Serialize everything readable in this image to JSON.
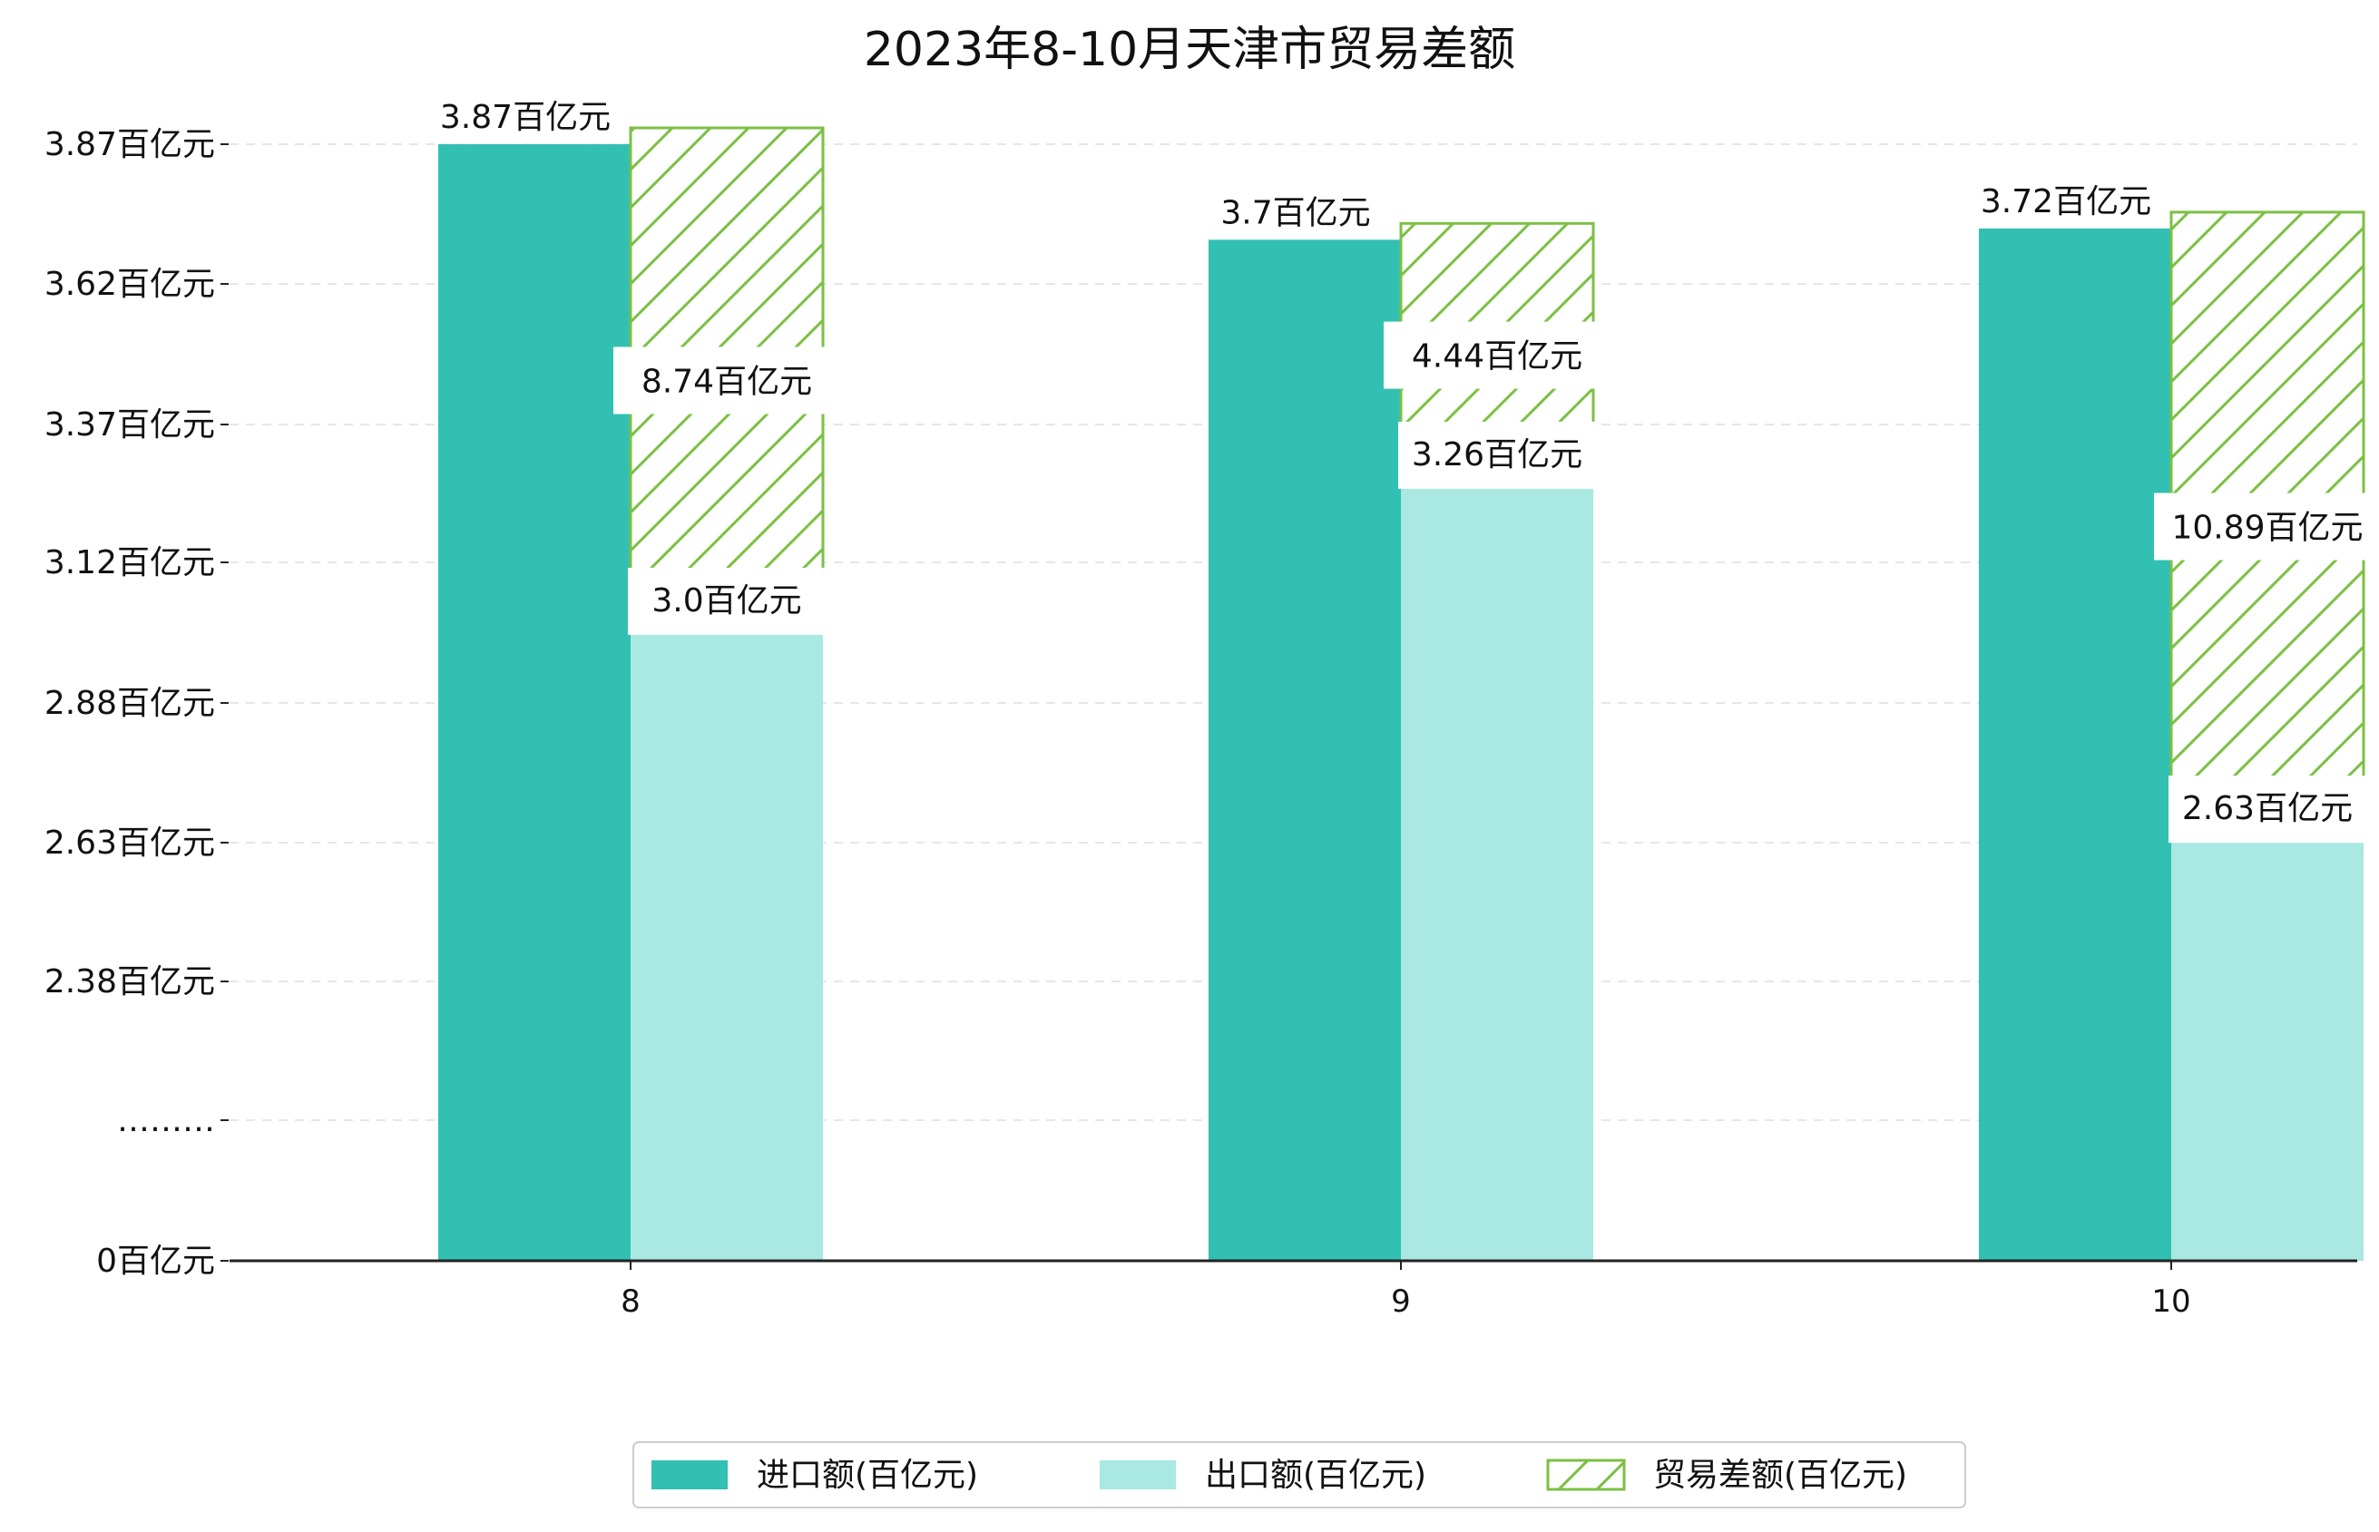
{
  "chart_data": {
    "type": "bar",
    "title": "2023年8-10月天津市贸易差额",
    "xlabel": "",
    "ylabel": "",
    "categories": [
      "8",
      "9",
      "10"
    ],
    "y_tick_labels": [
      "0百亿元",
      "………",
      "2.38百亿元",
      "2.63百亿元",
      "2.88百亿元",
      "3.12百亿元",
      "3.37百亿元",
      "3.62百亿元",
      "3.87百亿元"
    ],
    "series": [
      {
        "name": "进口额(百亿元)",
        "values": [
          3.87,
          3.7,
          3.72
        ],
        "labels": [
          "3.87百亿元",
          "3.7百亿元",
          "3.72百亿元"
        ],
        "color": "#32c0b3"
      },
      {
        "name": "出口额(百亿元)",
        "values": [
          3.0,
          3.26,
          2.63
        ],
        "labels": [
          "3.0百亿元",
          "3.26百亿元",
          "2.63百亿元"
        ],
        "color": "#aae8e2"
      },
      {
        "name": "贸易差额(百亿元)",
        "values": [
          8.74,
          4.44,
          10.89
        ],
        "labels": [
          "8.74百亿元",
          "4.44百亿元",
          "10.89百亿元"
        ],
        "color": "#7bc043",
        "pattern": "hatch"
      }
    ],
    "legend_position": "bottom-center",
    "grid": "horizontal-dashed",
    "axis_break": true
  }
}
